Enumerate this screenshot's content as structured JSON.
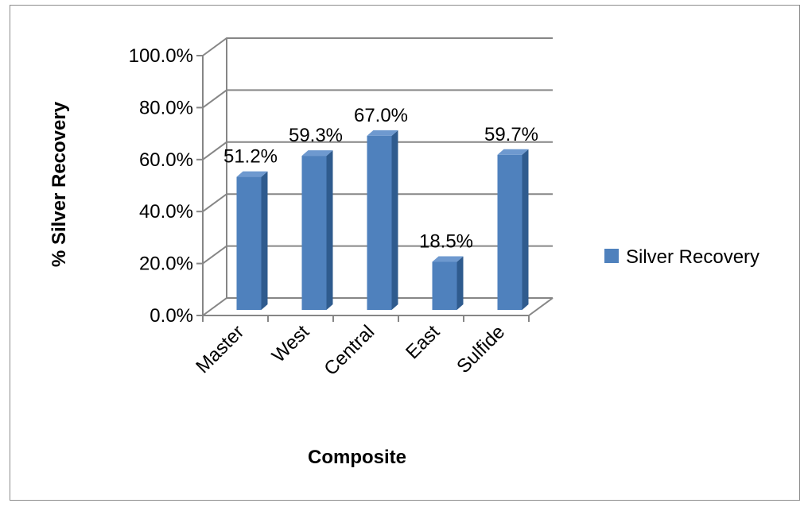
{
  "chart_data": {
    "type": "bar",
    "title": "",
    "xlabel": "Composite",
    "ylabel": "% Silver Recovery",
    "categories": [
      "Master",
      "West",
      "Central",
      "East",
      "Sulfide"
    ],
    "series": [
      {
        "name": "Silver Recovery",
        "values": [
          51.2,
          59.3,
          67.0,
          18.5,
          59.7
        ],
        "color": "#4F81BD"
      }
    ],
    "data_labels": [
      "51.2%",
      "59.3%",
      "67.0%",
      "18.5%",
      "59.7%"
    ],
    "ylim": [
      0,
      100
    ],
    "yticks": [
      "0.0%",
      "20.0%",
      "40.0%",
      "60.0%",
      "80.0%",
      "100.0%"
    ],
    "grid": true,
    "legend": "right",
    "bar_style": "3d-column"
  }
}
